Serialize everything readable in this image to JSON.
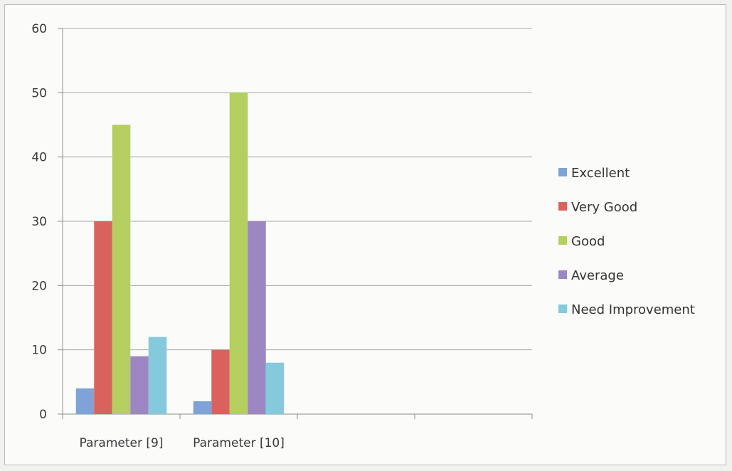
{
  "chart_data": {
    "type": "bar",
    "categories": [
      "Parameter [9]",
      "Parameter [10]",
      "",
      ""
    ],
    "series": [
      {
        "name": "Excellent",
        "color": "#7fa3d6",
        "values": [
          4,
          2,
          null,
          null
        ]
      },
      {
        "name": "Very Good",
        "color": "#d9625f",
        "values": [
          30,
          10,
          null,
          null
        ]
      },
      {
        "name": "Good",
        "color": "#b4cf5f",
        "values": [
          45,
          50,
          null,
          null
        ]
      },
      {
        "name": "Average",
        "color": "#9d87c2",
        "values": [
          9,
          30,
          null,
          null
        ]
      },
      {
        "name": "Need Improvement",
        "color": "#84c9dc",
        "values": [
          12,
          8,
          null,
          null
        ]
      }
    ],
    "yticks": [
      0,
      10,
      20,
      30,
      40,
      50,
      60
    ],
    "ylim": [
      0,
      60
    ],
    "grid": true,
    "legend_position": "right",
    "title": "",
    "xlabel": "",
    "ylabel": ""
  }
}
